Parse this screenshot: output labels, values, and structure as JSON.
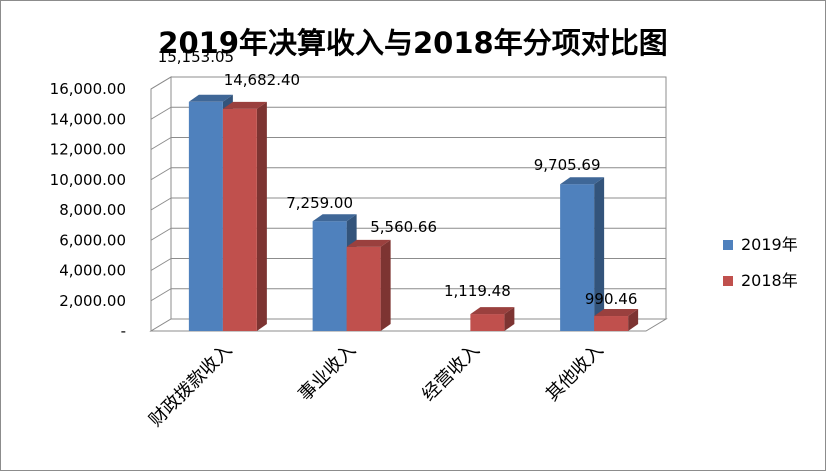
{
  "chart_data": {
    "type": "bar",
    "title": "2019年决算收入与2018年分项对比图",
    "categories": [
      "财政拨款收入",
      "事业收入",
      "经营收入",
      "其他收入"
    ],
    "series": [
      {
        "name": "2019年",
        "color": "#4f81bd",
        "values": [
          15153.05,
          7259.0,
          null,
          9705.69
        ],
        "labels": [
          "15,153.05",
          "7,259.00",
          "",
          "9,705.69"
        ]
      },
      {
        "name": "2018年",
        "color": "#c0504d",
        "values": [
          14682.4,
          5560.66,
          1119.48,
          990.46
        ],
        "labels": [
          "14,682.40",
          "5,560.66",
          "1,119.48",
          "990.46"
        ]
      }
    ],
    "ylim": [
      0,
      16000
    ],
    "yticks": [
      0,
      2000,
      4000,
      6000,
      8000,
      10000,
      12000,
      14000,
      16000
    ],
    "ytick_labels": [
      "-",
      "2,000.00",
      "4,000.00",
      "6,000.00",
      "8,000.00",
      "10,000.00",
      "12,000.00",
      "14,000.00",
      "16,000.00"
    ],
    "grid": true,
    "legend_position": "right",
    "xlabel": "",
    "ylabel": ""
  }
}
